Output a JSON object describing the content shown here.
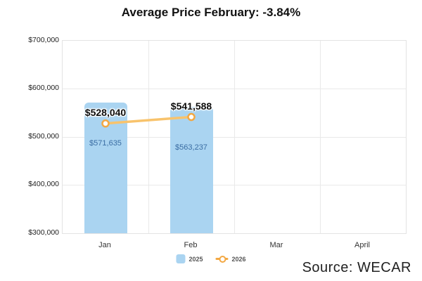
{
  "title": "Average Price February: -3.84%",
  "source": "Source: WECAR",
  "colors": {
    "bar_fill": "#aad4f1",
    "bar_label_text": "#3a6da3",
    "line_stroke": "#f8c36c",
    "marker_ring": "#f3a843",
    "gridline": "#e9e9e9",
    "title_text": "#111111"
  },
  "chart_data": {
    "type": "bar",
    "subtype": "bar-with-line-overlay",
    "title": "Average Price February: -3.84%",
    "categories": [
      "Jan",
      "Feb",
      "Mar",
      "April"
    ],
    "series": [
      {
        "name": "2025",
        "type": "bar",
        "color": "#aad4f1",
        "values": [
          571635,
          563237,
          null,
          null
        ],
        "labels": [
          "$571,635",
          "$563,237"
        ]
      },
      {
        "name": "2026",
        "type": "line",
        "color": "#f8c36c",
        "marker_color": "#f3a843",
        "values": [
          528040,
          541588,
          null,
          null
        ],
        "labels": [
          "$528,040",
          "$541,588"
        ]
      }
    ],
    "xlabel": "",
    "ylabel": "",
    "ylim": [
      300000,
      700000
    ],
    "ytick_step": 100000,
    "ylabel_ticks": [
      "$700,000",
      "$600,000",
      "$500,000",
      "$400,000",
      "$300,000"
    ],
    "grid": true,
    "legend_position": "bottom-center"
  }
}
